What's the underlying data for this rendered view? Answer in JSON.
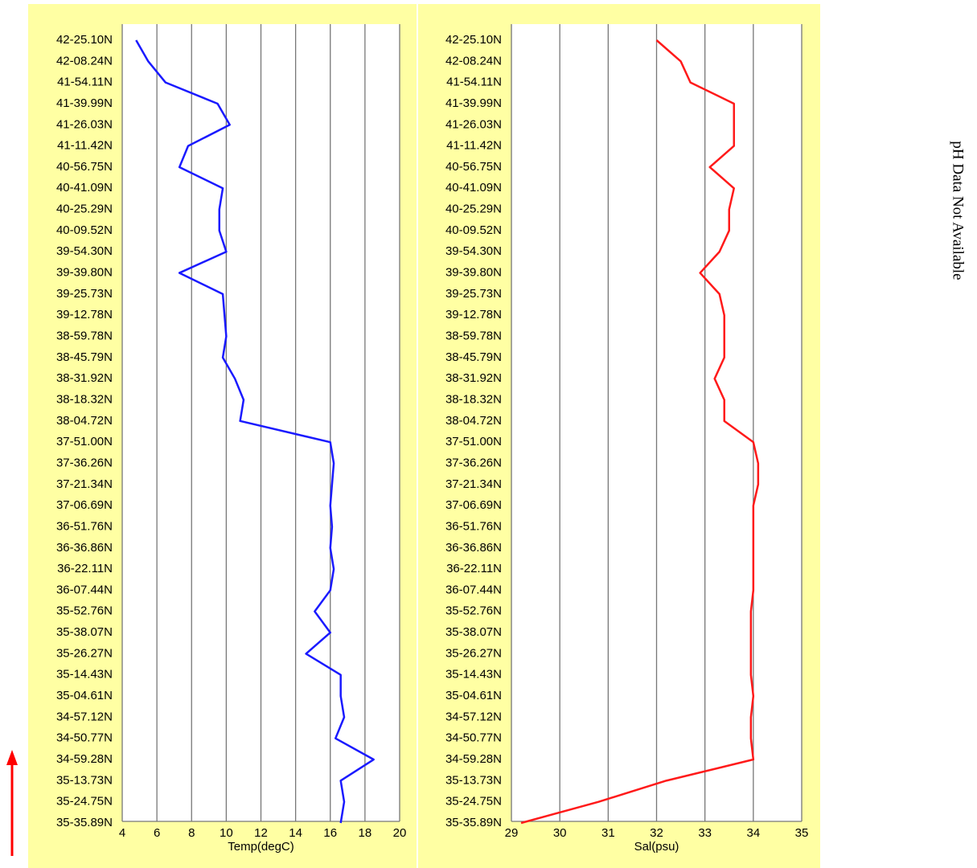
{
  "chart_data": [
    {
      "type": "line",
      "orientation": "vertical",
      "xlabel": "Temp(degC)",
      "categories": [
        "42-25.10N",
        "42-08.24N",
        "41-54.11N",
        "41-39.99N",
        "41-26.03N",
        "41-11.42N",
        "40-56.75N",
        "40-41.09N",
        "40-25.29N",
        "40-09.52N",
        "39-54.30N",
        "39-39.80N",
        "39-25.73N",
        "39-12.78N",
        "38-59.78N",
        "38-45.79N",
        "38-31.92N",
        "38-18.32N",
        "38-04.72N",
        "37-51.00N",
        "37-36.26N",
        "37-21.34N",
        "37-06.69N",
        "36-51.76N",
        "36-36.86N",
        "36-22.11N",
        "36-07.44N",
        "35-52.76N",
        "35-38.07N",
        "35-26.27N",
        "35-14.43N",
        "35-04.61N",
        "34-57.12N",
        "34-50.77N",
        "34-59.28N",
        "35-13.73N",
        "35-24.75N",
        "35-35.89N"
      ],
      "series": [
        {
          "color": "#1a1aff",
          "values": [
            4.8,
            5.5,
            6.5,
            9.5,
            10.2,
            7.8,
            7.3,
            9.8,
            9.6,
            9.6,
            10,
            7.3,
            9.8,
            9.9,
            10,
            9.8,
            10.5,
            11,
            10.8,
            16,
            16.2,
            16.1,
            16,
            16.1,
            16,
            16.2,
            16,
            15.1,
            16,
            14.6,
            16.6,
            16.6,
            16.8,
            16.3,
            18.5,
            16.6,
            16.8,
            16.6
          ]
        }
      ],
      "xlim": [
        4,
        20
      ],
      "xticks": [
        4,
        6,
        8,
        10,
        12,
        14,
        16,
        18,
        20
      ],
      "grid": true
    },
    {
      "type": "line",
      "orientation": "vertical",
      "xlabel": "Sal(psu)",
      "categories": [
        "42-25.10N",
        "42-08.24N",
        "41-54.11N",
        "41-39.99N",
        "41-26.03N",
        "41-11.42N",
        "40-56.75N",
        "40-41.09N",
        "40-25.29N",
        "40-09.52N",
        "39-54.30N",
        "39-39.80N",
        "39-25.73N",
        "39-12.78N",
        "38-59.78N",
        "38-45.79N",
        "38-31.92N",
        "38-18.32N",
        "38-04.72N",
        "37-51.00N",
        "37-36.26N",
        "37-21.34N",
        "37-06.69N",
        "36-51.76N",
        "36-36.86N",
        "36-22.11N",
        "36-07.44N",
        "35-52.76N",
        "35-38.07N",
        "35-26.27N",
        "35-14.43N",
        "35-04.61N",
        "34-57.12N",
        "34-50.77N",
        "34-59.28N",
        "35-13.73N",
        "35-24.75N",
        "35-35.89N"
      ],
      "series": [
        {
          "color": "#ff1a1a",
          "values": [
            32.0,
            32.5,
            32.7,
            33.6,
            33.6,
            33.6,
            33.1,
            33.6,
            33.5,
            33.5,
            33.3,
            32.9,
            33.3,
            33.4,
            33.4,
            33.4,
            33.2,
            33.4,
            33.4,
            34.0,
            34.1,
            34.1,
            34.0,
            34.0,
            34.0,
            34.0,
            34.0,
            33.95,
            33.95,
            33.95,
            33.95,
            34.0,
            33.95,
            33.95,
            34.0,
            32.2,
            30.8,
            29.2
          ]
        }
      ],
      "xlim": [
        29,
        35
      ],
      "xticks": [
        29,
        30,
        31,
        32,
        33,
        34,
        35
      ],
      "grid": true
    }
  ],
  "message": "pH Data Not Available"
}
